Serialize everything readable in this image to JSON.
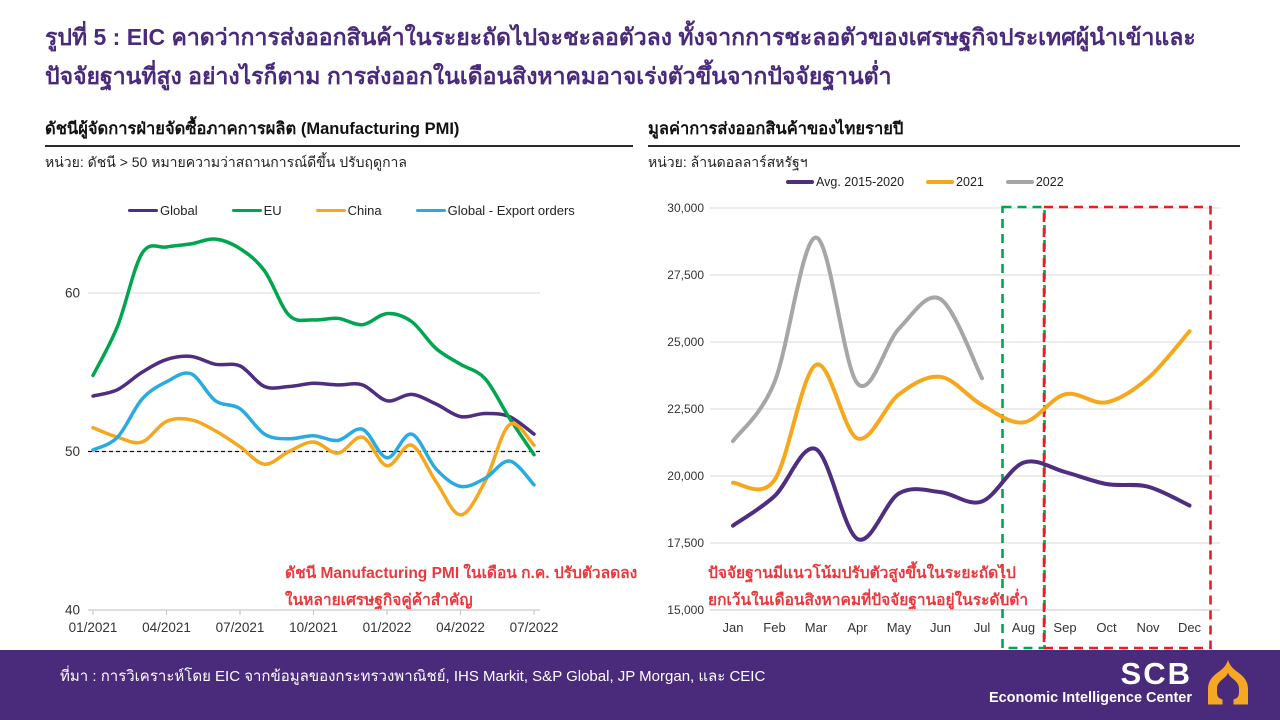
{
  "title": {
    "line1": "รูปที่ 5 : EIC คาดว่าการส่งออกสินค้าในระยะถัดไปจะชะลอตัวลง ทั้งจากการชะลอตัวของเศรษฐกิจประเทศผู้นำเข้าและ",
    "line2": "ปัจจัยฐานที่สูง อย่างไรก็ตาม การส่งออกในเดือนสิงหาคมอาจเร่งตัวขึ้นจากปัจจัยฐานต่ำ"
  },
  "colors": {
    "brand_purple": "#4A2A7B",
    "annotation_red": "#E8393D",
    "gridline": "#D9D9D9",
    "axis_text": "#333333",
    "logo_gold": "#F7A823"
  },
  "chart_data": [
    {
      "id": "pmi",
      "type": "line",
      "title": "ดัชนีผู้จัดการฝ่ายจัดซื้อภาคการผลิต (Manufacturing PMI)",
      "unit_label": "หน่วย: ดัชนี > 50 หมายความว่าสถานการณ์ดีขึ้น ปรับฤดูกาล",
      "x_labels": [
        "01/2021",
        "02/2021",
        "03/2021",
        "04/2021",
        "05/2021",
        "06/2021",
        "07/2021",
        "08/2021",
        "09/2021",
        "10/2021",
        "11/2021",
        "12/2021",
        "01/2022",
        "02/2022",
        "03/2022",
        "04/2022",
        "05/2022",
        "06/2022",
        "07/2022"
      ],
      "x_ticks": [
        "01/2021",
        "04/2021",
        "07/2021",
        "10/2021",
        "01/2022",
        "04/2022",
        "07/2022"
      ],
      "ylim": [
        40,
        64.5
      ],
      "yticks": [
        40,
        50,
        60
      ],
      "reference_line": 50,
      "legend_position": "top",
      "series": [
        {
          "name": "Global",
          "color": "#4F2D7F",
          "values": [
            53.5,
            53.9,
            55.0,
            55.8,
            56.0,
            55.5,
            55.4,
            54.1,
            54.1,
            54.3,
            54.2,
            54.2,
            53.2,
            53.6,
            53.0,
            52.2,
            52.4,
            52.2,
            51.1
          ]
        },
        {
          "name": "EU",
          "color": "#00A64F",
          "values": [
            54.8,
            57.9,
            62.5,
            62.9,
            63.1,
            63.4,
            62.8,
            61.4,
            58.6,
            58.3,
            58.4,
            58.0,
            58.7,
            58.2,
            56.5,
            55.5,
            54.6,
            52.1,
            49.8
          ]
        },
        {
          "name": "China",
          "color": "#F5A81C",
          "values": [
            51.5,
            50.9,
            50.6,
            51.9,
            52.0,
            51.3,
            50.3,
            49.2,
            50.0,
            50.6,
            49.9,
            50.9,
            49.1,
            50.4,
            48.1,
            46.0,
            48.1,
            51.7,
            50.4
          ]
        },
        {
          "name": "Global - Export orders",
          "color": "#29ABE2",
          "values": [
            50.1,
            50.9,
            53.3,
            54.4,
            54.9,
            53.2,
            52.7,
            51.1,
            50.8,
            51.0,
            50.7,
            51.4,
            49.6,
            51.1,
            48.9,
            47.8,
            48.3,
            49.4,
            47.9
          ]
        }
      ],
      "annotation": {
        "line1": "ดัชนี Manufacturing PMI ในเดือน ก.ค. ปรับตัวลดลง",
        "line2": "ในหลายเศรษฐกิจคู่ค้าสำคัญ"
      }
    },
    {
      "id": "exports",
      "type": "line",
      "title": "มูลค่าการส่งออกสินค้าของไทยรายปี",
      "unit_label": "หน่วย: ล้านดอลลาร์สหรัฐฯ",
      "categories": [
        "Jan",
        "Feb",
        "Mar",
        "Apr",
        "May",
        "Jun",
        "Jul",
        "Aug",
        "Sep",
        "Oct",
        "Nov",
        "Dec"
      ],
      "ylim": [
        15000,
        30000
      ],
      "yticks": [
        15000,
        17500,
        20000,
        22500,
        25000,
        27500,
        30000
      ],
      "legend_position": "top",
      "series": [
        {
          "name": "Avg. 2015-2020",
          "color": "#4F2D7F",
          "values": [
            18150,
            19250,
            21000,
            17650,
            19350,
            19400,
            19050,
            20500,
            20150,
            19700,
            19600,
            18900
          ]
        },
        {
          "name": "2021",
          "color": "#F5A81C",
          "values": [
            19750,
            19850,
            24150,
            21400,
            23050,
            23700,
            22650,
            22000,
            23050,
            22750,
            23650,
            25400
          ]
        },
        {
          "name": "2022",
          "color": "#A7A5A6",
          "values": [
            21300,
            23500,
            28900,
            23450,
            25500,
            26600,
            23650,
            null,
            null,
            null,
            null,
            null
          ]
        }
      ],
      "highlight_boxes": [
        {
          "months": [
            "Aug"
          ],
          "color": "#00A651"
        },
        {
          "months": [
            "Sep",
            "Oct",
            "Nov",
            "Dec"
          ],
          "color": "#EC1C24"
        }
      ],
      "annotation": {
        "line1": "ปัจจัยฐานมีแนวโน้มปรับตัวสูงขึ้นในระยะถัดไป",
        "line2": "ยกเว้นในเดือนสิงหาคมที่ปัจจัยฐานอยู่ในระดับต่ำ"
      }
    }
  ],
  "footer": {
    "source": "ที่มา : การวิเคราะห์โดย EIC จากข้อมูลของกระทรวงพาณิชย์, IHS Markit, S&P Global, JP Morgan, และ CEIC",
    "logo": {
      "text": "SCB",
      "subtext": "Economic Intelligence Center"
    }
  }
}
